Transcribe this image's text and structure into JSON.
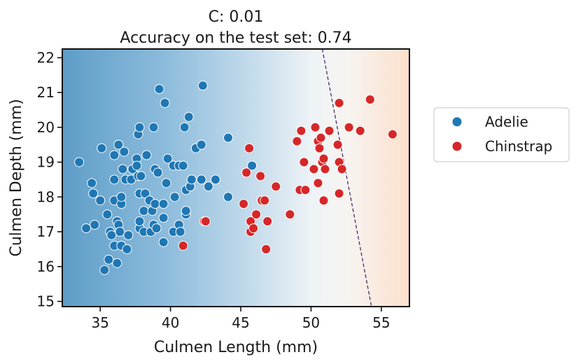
{
  "chart_data": {
    "type": "scatter",
    "title": "C: 0.01",
    "subtitle": "Accuracy on the test set: 0.74",
    "xlabel": "Culmen Length (mm)",
    "ylabel": "Culmen Depth (mm)",
    "xlim": [
      32.3,
      57.0
    ],
    "ylim": [
      14.85,
      22.25
    ],
    "xticks": [
      35,
      40,
      45,
      50,
      55
    ],
    "yticks": [
      15,
      16,
      17,
      18,
      19,
      20,
      21,
      22
    ],
    "background": "decision-function gradient, blue (Adelie) to orange (Chinstrap)",
    "decision_boundary": {
      "style": "dashed",
      "color": "#4b2a6e",
      "points": [
        [
          50.8,
          22.25
        ],
        [
          54.3,
          14.85
        ]
      ]
    },
    "legend_placement": "outside-right",
    "grid": false,
    "series": [
      {
        "name": "Adelie",
        "color": "#1f77b4",
        "points": [
          [
            33.5,
            19.0
          ],
          [
            34.0,
            17.1
          ],
          [
            34.4,
            18.4
          ],
          [
            34.5,
            18.1
          ],
          [
            34.6,
            17.2
          ],
          [
            35.0,
            17.9
          ],
          [
            35.1,
            19.4
          ],
          [
            35.3,
            15.9
          ],
          [
            35.5,
            17.5
          ],
          [
            35.6,
            16.2
          ],
          [
            35.7,
            17.0
          ],
          [
            35.8,
            16.9
          ],
          [
            36.0,
            16.6
          ],
          [
            36.0,
            17.9
          ],
          [
            36.0,
            18.5
          ],
          [
            36.0,
            19.2
          ],
          [
            36.2,
            16.1
          ],
          [
            36.2,
            17.3
          ],
          [
            36.3,
            17.2
          ],
          [
            36.3,
            19.5
          ],
          [
            36.4,
            17.0
          ],
          [
            36.5,
            16.6
          ],
          [
            36.5,
            17.8
          ],
          [
            36.5,
            18.0
          ],
          [
            36.6,
            18.8
          ],
          [
            36.7,
            19.3
          ],
          [
            36.8,
            18.5
          ],
          [
            36.9,
            16.5
          ],
          [
            37.0,
            16.9
          ],
          [
            37.2,
            18.5
          ],
          [
            37.3,
            18.8
          ],
          [
            37.6,
            19.1
          ],
          [
            37.6,
            18.9
          ],
          [
            37.7,
            18.6
          ],
          [
            37.7,
            19.8
          ],
          [
            37.8,
            17.1
          ],
          [
            37.8,
            17.3
          ],
          [
            37.8,
            18.1
          ],
          [
            37.8,
            20.0
          ],
          [
            37.9,
            18.6
          ],
          [
            38.1,
            17.0
          ],
          [
            38.1,
            17.6
          ],
          [
            38.2,
            18.1
          ],
          [
            38.3,
            19.2
          ],
          [
            38.5,
            17.9
          ],
          [
            38.6,
            17.0
          ],
          [
            38.7,
            17.6
          ],
          [
            38.8,
            17.2
          ],
          [
            38.8,
            20.0
          ],
          [
            38.9,
            17.8
          ],
          [
            38.9,
            18.8
          ],
          [
            39.0,
            17.1
          ],
          [
            39.1,
            18.7
          ],
          [
            39.2,
            21.1
          ],
          [
            39.5,
            16.7
          ],
          [
            39.5,
            17.4
          ],
          [
            39.5,
            17.8
          ],
          [
            39.6,
            20.7
          ],
          [
            39.7,
            18.4
          ],
          [
            39.8,
            19.1
          ],
          [
            40.2,
            17.0
          ],
          [
            40.2,
            18.9
          ],
          [
            40.3,
            18.0
          ],
          [
            40.6,
            17.2
          ],
          [
            40.6,
            18.9
          ],
          [
            40.7,
            17.0
          ],
          [
            40.9,
            18.9
          ],
          [
            41.0,
            20.0
          ],
          [
            41.1,
            17.5
          ],
          [
            41.1,
            17.6
          ],
          [
            41.1,
            18.2
          ],
          [
            41.3,
            20.3
          ],
          [
            41.4,
            18.3
          ],
          [
            41.5,
            18.5
          ],
          [
            41.8,
            19.4
          ],
          [
            42.2,
            18.5
          ],
          [
            42.2,
            19.5
          ],
          [
            42.3,
            21.2
          ],
          [
            42.7,
            18.3
          ],
          [
            43.2,
            18.5
          ],
          [
            44.1,
            18.0
          ],
          [
            44.1,
            19.7
          ],
          [
            45.8,
            18.9
          ]
        ]
      },
      {
        "name": "Chinstrap",
        "color": "#d62728",
        "points": [
          [
            40.9,
            16.6
          ],
          [
            42.4,
            17.3
          ],
          [
            42.5,
            17.3
          ],
          [
            45.2,
            17.8
          ],
          [
            45.4,
            18.7
          ],
          [
            45.6,
            19.4
          ],
          [
            45.7,
            17.0
          ],
          [
            45.7,
            17.3
          ],
          [
            45.9,
            17.1
          ],
          [
            46.1,
            17.5
          ],
          [
            46.4,
            18.6
          ],
          [
            46.5,
            17.9
          ],
          [
            46.7,
            17.9
          ],
          [
            46.8,
            16.5
          ],
          [
            46.9,
            17.3
          ],
          [
            47.5,
            18.3
          ],
          [
            48.5,
            17.5
          ],
          [
            49.0,
            19.6
          ],
          [
            49.2,
            18.2
          ],
          [
            49.3,
            19.9
          ],
          [
            49.5,
            19.0
          ],
          [
            49.6,
            18.2
          ],
          [
            50.2,
            18.8
          ],
          [
            50.3,
            20.0
          ],
          [
            50.5,
            18.4
          ],
          [
            50.5,
            19.6
          ],
          [
            50.6,
            19.4
          ],
          [
            50.7,
            19.7
          ],
          [
            50.8,
            19.0
          ],
          [
            50.9,
            17.9
          ],
          [
            50.9,
            19.1
          ],
          [
            51.0,
            18.8
          ],
          [
            51.3,
            19.9
          ],
          [
            51.9,
            19.5
          ],
          [
            52.0,
            18.1
          ],
          [
            52.0,
            19.0
          ],
          [
            52.0,
            20.7
          ],
          [
            52.2,
            18.8
          ],
          [
            52.7,
            20.0
          ],
          [
            53.5,
            19.9
          ],
          [
            54.2,
            20.8
          ],
          [
            55.8,
            19.8
          ]
        ]
      }
    ]
  }
}
